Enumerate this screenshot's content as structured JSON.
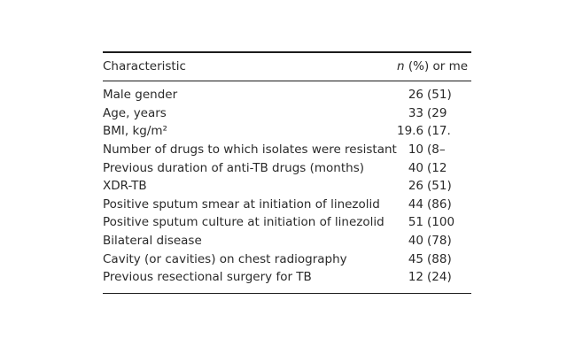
{
  "colors": {
    "background": "#ffffff",
    "text": "#2a2a2a",
    "rule": "#1c1c1c"
  },
  "table": {
    "header": {
      "characteristic": "Characteristic",
      "value_italic": "n",
      "value_rest": " (%) or me"
    },
    "rows": [
      {
        "label": "Male gender",
        "num": "26",
        "paren": "(51)"
      },
      {
        "label": "Age, years",
        "num": "33",
        "paren": "(29"
      },
      {
        "label": "BMI, kg/m²",
        "num": "19.6",
        "paren": "(17."
      },
      {
        "label": "Number of drugs to which isolates were resistant",
        "num": "10",
        "paren": "(8–"
      },
      {
        "label": "Previous duration of anti-TB drugs (months)",
        "num": "40",
        "paren": "(12"
      },
      {
        "label": "XDR-TB",
        "num": "26",
        "paren": "(51)"
      },
      {
        "label": "Positive sputum smear at initiation of linezolid",
        "num": "44",
        "paren": "(86)"
      },
      {
        "label": "Positive sputum culture at initiation of linezolid",
        "num": "51",
        "paren": "(100"
      },
      {
        "label": "Bilateral disease",
        "num": "40",
        "paren": "(78)"
      },
      {
        "label": "Cavity (or cavities) on chest radiography",
        "num": "45",
        "paren": "(88)"
      },
      {
        "label": "Previous resectional surgery for TB",
        "num": "12",
        "paren": "(24)"
      }
    ]
  }
}
